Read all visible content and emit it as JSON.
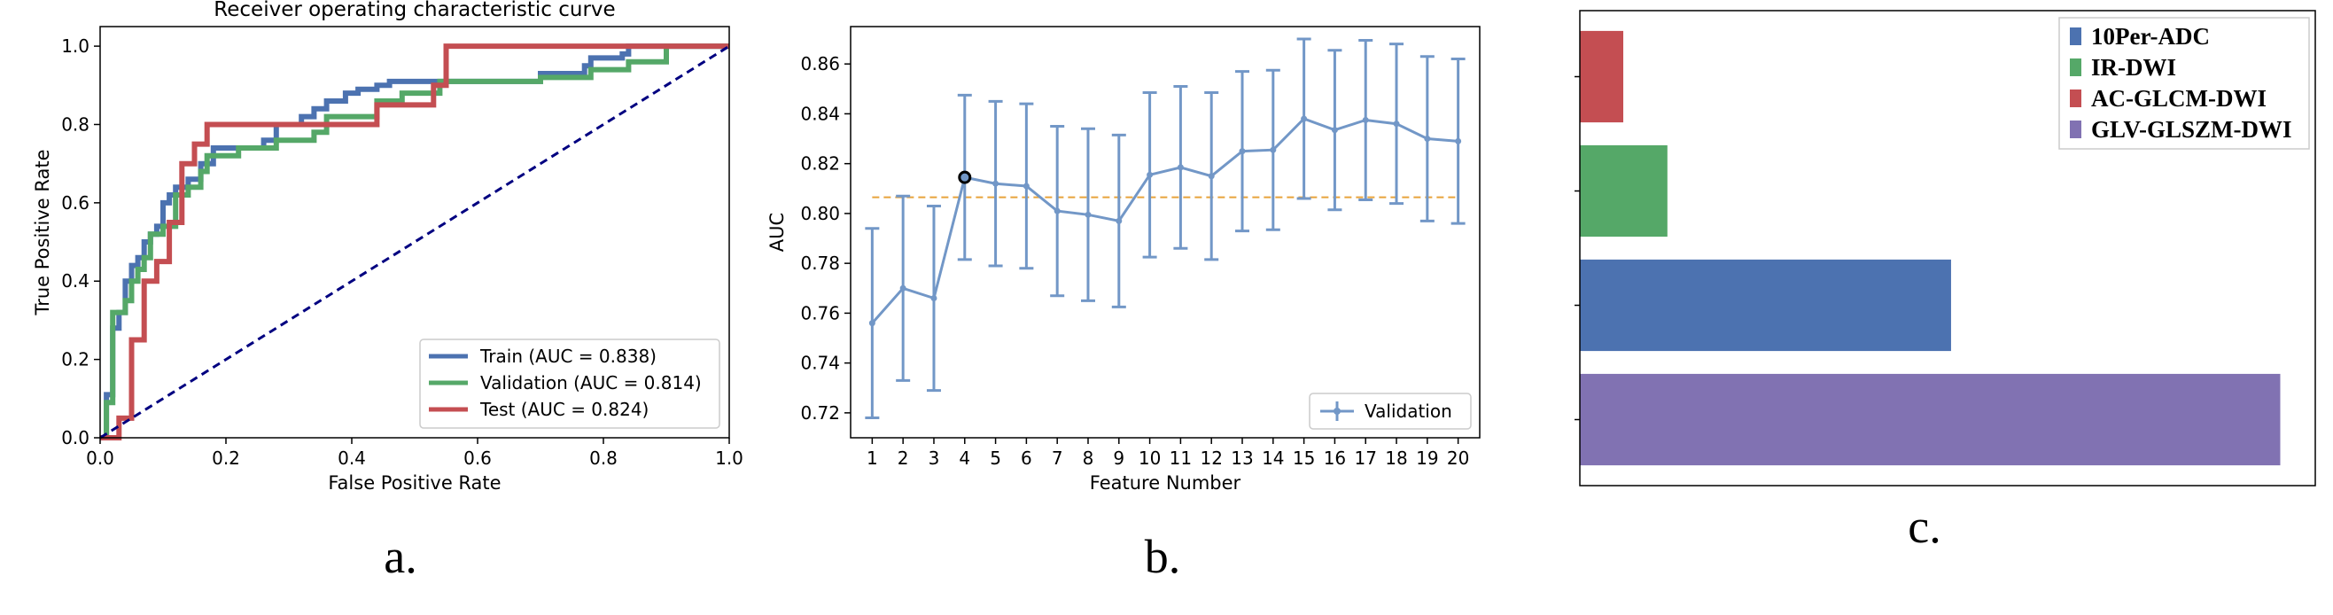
{
  "chart_data": [
    {
      "type": "line",
      "panel": "a",
      "caption": "a.",
      "title": "Receiver operating characteristic curve",
      "xlabel": "False Positive Rate",
      "ylabel": "True Positive Rate",
      "xlim": [
        0,
        1
      ],
      "ylim": [
        0,
        1.05
      ],
      "xticks": [
        "0.0",
        "0.2",
        "0.4",
        "0.6",
        "0.8",
        "1.0"
      ],
      "yticks": [
        "0.0",
        "0.2",
        "0.4",
        "0.6",
        "0.8",
        "1.0"
      ],
      "legend_position": "lower-right",
      "series": [
        {
          "name": "Train (AUC = 0.838)",
          "color": "#4c72b0",
          "x": [
            0,
            0.01,
            0.01,
            0.02,
            0.02,
            0.03,
            0.03,
            0.04,
            0.04,
            0.05,
            0.05,
            0.06,
            0.06,
            0.07,
            0.07,
            0.08,
            0.08,
            0.09,
            0.09,
            0.1,
            0.1,
            0.11,
            0.11,
            0.12,
            0.12,
            0.14,
            0.14,
            0.16,
            0.16,
            0.18,
            0.18,
            0.26,
            0.26,
            0.28,
            0.28,
            0.32,
            0.32,
            0.34,
            0.34,
            0.36,
            0.36,
            0.39,
            0.39,
            0.41,
            0.41,
            0.44,
            0.44,
            0.46,
            0.46,
            0.5,
            0.5,
            0.7,
            0.7,
            0.71,
            0.71,
            0.77,
            0.77,
            0.78,
            0.78,
            0.83,
            0.83,
            0.84,
            0.84,
            1.0
          ],
          "y": [
            0,
            0,
            0.11,
            0.11,
            0.28,
            0.28,
            0.32,
            0.32,
            0.4,
            0.4,
            0.44,
            0.44,
            0.46,
            0.46,
            0.5,
            0.5,
            0.52,
            0.52,
            0.54,
            0.54,
            0.6,
            0.6,
            0.62,
            0.62,
            0.64,
            0.64,
            0.66,
            0.66,
            0.7,
            0.7,
            0.74,
            0.74,
            0.76,
            0.76,
            0.8,
            0.8,
            0.82,
            0.82,
            0.84,
            0.84,
            0.86,
            0.86,
            0.88,
            0.88,
            0.89,
            0.89,
            0.9,
            0.9,
            0.91,
            0.91,
            0.91,
            0.91,
            0.93,
            0.93,
            0.93,
            0.93,
            0.95,
            0.95,
            0.97,
            0.97,
            0.98,
            0.98,
            1.0,
            1.0
          ]
        },
        {
          "name": "Validation (AUC = 0.814)",
          "color": "#55a868",
          "x": [
            0,
            0.01,
            0.01,
            0.02,
            0.02,
            0.04,
            0.04,
            0.05,
            0.05,
            0.06,
            0.06,
            0.07,
            0.07,
            0.08,
            0.08,
            0.1,
            0.1,
            0.12,
            0.12,
            0.14,
            0.14,
            0.16,
            0.16,
            0.17,
            0.17,
            0.22,
            0.22,
            0.28,
            0.28,
            0.34,
            0.34,
            0.36,
            0.36,
            0.44,
            0.44,
            0.48,
            0.48,
            0.54,
            0.54,
            0.7,
            0.7,
            0.78,
            0.78,
            0.84,
            0.84,
            0.9,
            0.9,
            1.0
          ],
          "y": [
            0,
            0,
            0.09,
            0.09,
            0.32,
            0.32,
            0.35,
            0.35,
            0.4,
            0.4,
            0.43,
            0.43,
            0.46,
            0.46,
            0.52,
            0.52,
            0.54,
            0.54,
            0.62,
            0.62,
            0.64,
            0.64,
            0.68,
            0.68,
            0.72,
            0.72,
            0.74,
            0.74,
            0.76,
            0.76,
            0.78,
            0.78,
            0.82,
            0.82,
            0.86,
            0.86,
            0.88,
            0.88,
            0.91,
            0.91,
            0.92,
            0.92,
            0.94,
            0.94,
            0.96,
            0.96,
            1.0,
            1.0
          ]
        },
        {
          "name": "Test (AUC = 0.824)",
          "color": "#c44e52",
          "x": [
            0,
            0.03,
            0.03,
            0.05,
            0.05,
            0.07,
            0.07,
            0.09,
            0.09,
            0.11,
            0.11,
            0.13,
            0.13,
            0.15,
            0.15,
            0.17,
            0.17,
            0.34,
            0.34,
            0.36,
            0.36,
            0.44,
            0.44,
            0.53,
            0.53,
            0.55,
            0.55,
            1.0
          ],
          "y": [
            0,
            0,
            0.05,
            0.05,
            0.25,
            0.25,
            0.4,
            0.4,
            0.45,
            0.45,
            0.55,
            0.55,
            0.7,
            0.7,
            0.75,
            0.75,
            0.8,
            0.8,
            0.8,
            0.8,
            0.8,
            0.8,
            0.85,
            0.85,
            0.9,
            0.9,
            1.0,
            1.0
          ]
        },
        {
          "name": "chance",
          "color": "#000080",
          "x": [
            0,
            1
          ],
          "y": [
            0,
            1
          ]
        }
      ]
    },
    {
      "type": "line",
      "panel": "b",
      "caption": "b.",
      "title": "",
      "xlabel": "Feature Number",
      "ylabel": "AUC",
      "xlim": [
        0.3,
        20.7
      ],
      "ylim": [
        0.71,
        0.875
      ],
      "xticks": [
        "1",
        "2",
        "3",
        "4",
        "5",
        "6",
        "7",
        "8",
        "9",
        "10",
        "11",
        "12",
        "13",
        "14",
        "15",
        "16",
        "17",
        "18",
        "19",
        "20"
      ],
      "yticks": [
        "0.72",
        "0.74",
        "0.76",
        "0.78",
        "0.80",
        "0.82",
        "0.84",
        "0.86"
      ],
      "legend_position": "lower-right",
      "reference_line": {
        "y": 0.8065,
        "x_from": 1,
        "x_to": 20,
        "color": "#e8a33b"
      },
      "highlight_point": {
        "x": 4,
        "y": 0.8145
      },
      "series": [
        {
          "name": "Validation",
          "color": "#7297c7",
          "x": [
            1,
            2,
            3,
            4,
            5,
            6,
            7,
            8,
            9,
            10,
            11,
            12,
            13,
            14,
            15,
            16,
            17,
            18,
            19,
            20
          ],
          "y": [
            0.756,
            0.77,
            0.766,
            0.8145,
            0.812,
            0.811,
            0.801,
            0.7995,
            0.797,
            0.8155,
            0.8185,
            0.815,
            0.825,
            0.8255,
            0.838,
            0.8335,
            0.8375,
            0.836,
            0.83,
            0.829
          ],
          "err": [
            0.038,
            0.037,
            0.037,
            0.033,
            0.033,
            0.033,
            0.034,
            0.0345,
            0.0345,
            0.033,
            0.0325,
            0.0335,
            0.032,
            0.032,
            0.032,
            0.032,
            0.032,
            0.032,
            0.033,
            0.033
          ]
        }
      ]
    },
    {
      "type": "bar",
      "orientation": "horizontal",
      "panel": "c",
      "caption": "c.",
      "title": "",
      "legend_position": "top-right",
      "categories": [
        "10Per-ADC",
        "IR-DWI",
        "AC-GLCM-DWI",
        "GLV-GLSZM-DWI"
      ],
      "bar_order_top_to_bottom": [
        "AC-GLCM-DWI",
        "IR-DWI",
        "10Per-ADC",
        "GLV-GLSZM-DWI"
      ],
      "values": [
        0.53,
        0.125,
        0.062,
        1.0
      ],
      "xlim": [
        0,
        1.05
      ],
      "colors": [
        "#4c72b0",
        "#55a868",
        "#c44e52",
        "#8172b2"
      ]
    }
  ]
}
